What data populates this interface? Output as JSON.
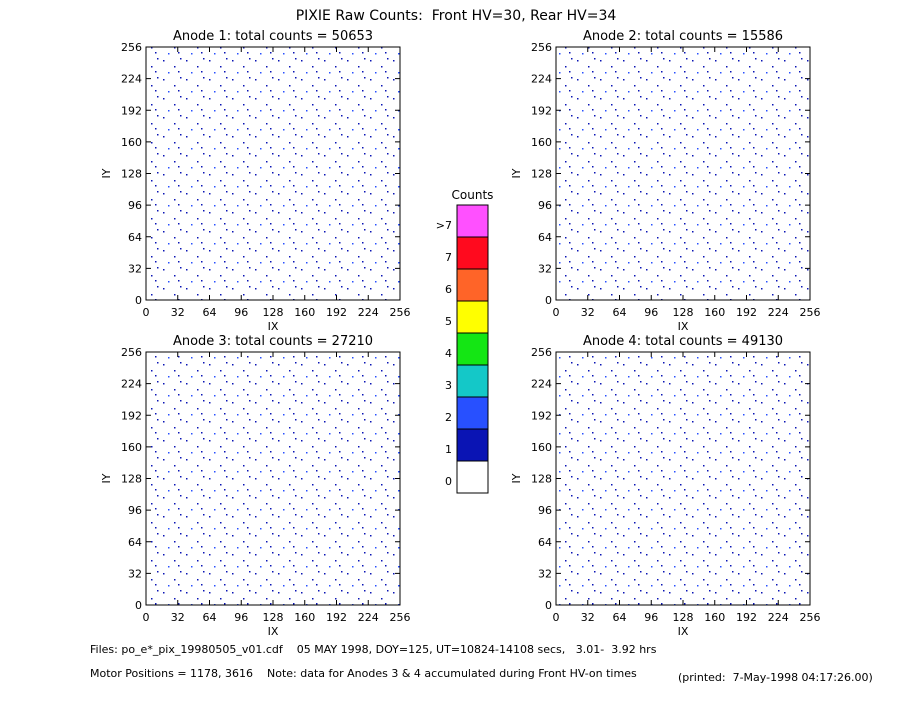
{
  "title": "PIXIE Raw Counts:  Front HV=30, Rear HV=34",
  "chart_data": [
    {
      "type": "heatmap",
      "title": "Anode 1: total counts = 50653",
      "xlabel": "IX",
      "ylabel": "IY",
      "xlim": [
        0,
        256
      ],
      "ylim": [
        0,
        256
      ],
      "xticks": [
        0,
        32,
        64,
        96,
        128,
        160,
        192,
        224,
        256
      ],
      "yticks": [
        0,
        32,
        64,
        96,
        128,
        160,
        192,
        224,
        256
      ]
    },
    {
      "type": "heatmap",
      "title": "Anode 2: total counts = 15586",
      "xlabel": "IX",
      "ylabel": "IY",
      "xlim": [
        0,
        256
      ],
      "ylim": [
        0,
        256
      ],
      "xticks": [
        0,
        32,
        64,
        96,
        128,
        160,
        192,
        224,
        256
      ],
      "yticks": [
        0,
        32,
        64,
        96,
        128,
        160,
        192,
        224,
        256
      ]
    },
    {
      "type": "heatmap",
      "title": "Anode 3: total counts = 27210",
      "xlabel": "IX",
      "ylabel": "IY",
      "xlim": [
        0,
        256
      ],
      "ylim": [
        0,
        256
      ],
      "xticks": [
        0,
        32,
        64,
        96,
        128,
        160,
        192,
        224,
        256
      ],
      "yticks": [
        0,
        32,
        64,
        96,
        128,
        160,
        192,
        224,
        256
      ]
    },
    {
      "type": "heatmap",
      "title": "Anode 4: total counts = 49130",
      "xlabel": "IX",
      "ylabel": "IY",
      "xlim": [
        0,
        256
      ],
      "ylim": [
        0,
        256
      ],
      "xticks": [
        0,
        32,
        64,
        96,
        128,
        160,
        192,
        224,
        256
      ],
      "yticks": [
        0,
        32,
        64,
        96,
        128,
        160,
        192,
        224,
        256
      ]
    }
  ],
  "colorbar": {
    "title": "Counts",
    "labels": [
      "0",
      "1",
      "2",
      "3",
      "4",
      "5",
      "6",
      "7",
      ">7"
    ],
    "colors": [
      "#ffffff",
      "#0a14b4",
      "#2850ff",
      "#14c8c8",
      "#14e614",
      "#ffff00",
      "#ff6428",
      "#ff0a1e",
      "#ff50ff"
    ]
  },
  "footer": {
    "files": "Files: po_e*_pix_19980505_v01.cdf    05 MAY 1998, DOY=125, UT=10824-14108 secs,   3.01-  3.92 hrs",
    "motor": "Motor Positions = 1178, 3616    Note: data for Anodes 3 & 4 accumulated during Front HV-on times",
    "printed": "(printed:  7-May-1998 04:17:26.00)"
  }
}
